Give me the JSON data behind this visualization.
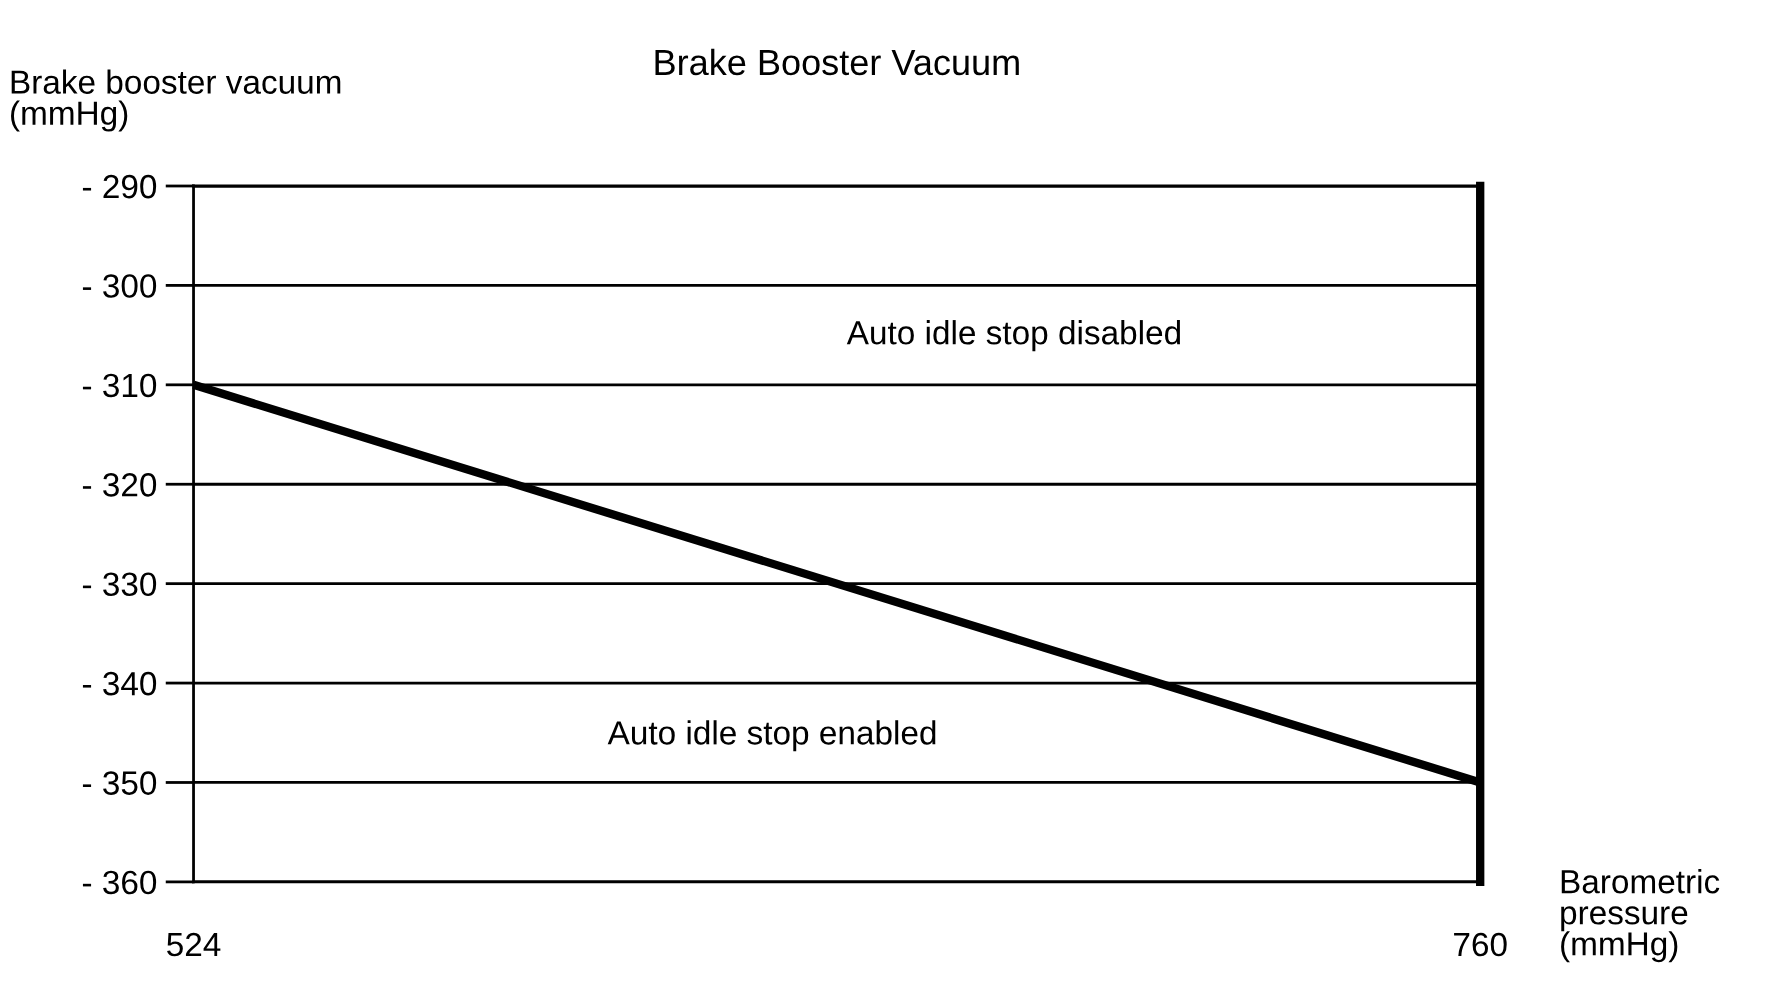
{
  "chart_data": {
    "type": "line",
    "title": "Brake Booster Vacuum",
    "xlabel": "Barometric\npressure\n(mmHg)",
    "ylabel": "Brake booster vacuum\n(mmHg)",
    "x": [
      524,
      760
    ],
    "series": [
      {
        "color": "#000000",
        "values": [
          -310,
          -350
        ]
      }
    ],
    "ref_lines": [
      {
        "axis": "x",
        "value": 760,
        "color": "#000000"
      }
    ],
    "xlim": [
      524,
      760
    ],
    "xticks": [
      524,
      760
    ],
    "ylim": [
      -360,
      -290
    ],
    "yticks": [
      {
        "value": -360,
        "label": "- 360"
      },
      {
        "value": -350,
        "label": "- 350"
      },
      {
        "value": -340,
        "label": "- 340"
      },
      {
        "value": -330,
        "label": "- 330"
      },
      {
        "value": -320,
        "label": "- 320"
      },
      {
        "value": -310,
        "label": "- 310"
      },
      {
        "value": -300,
        "label": "- 300"
      },
      {
        "value": -290,
        "label": "- 290"
      }
    ],
    "grid": "y",
    "legend": false,
    "marker": "none",
    "line_style": "solid",
    "annotations": [
      "Auto idle stop disabled",
      "Auto idle stop enabled"
    ]
  }
}
